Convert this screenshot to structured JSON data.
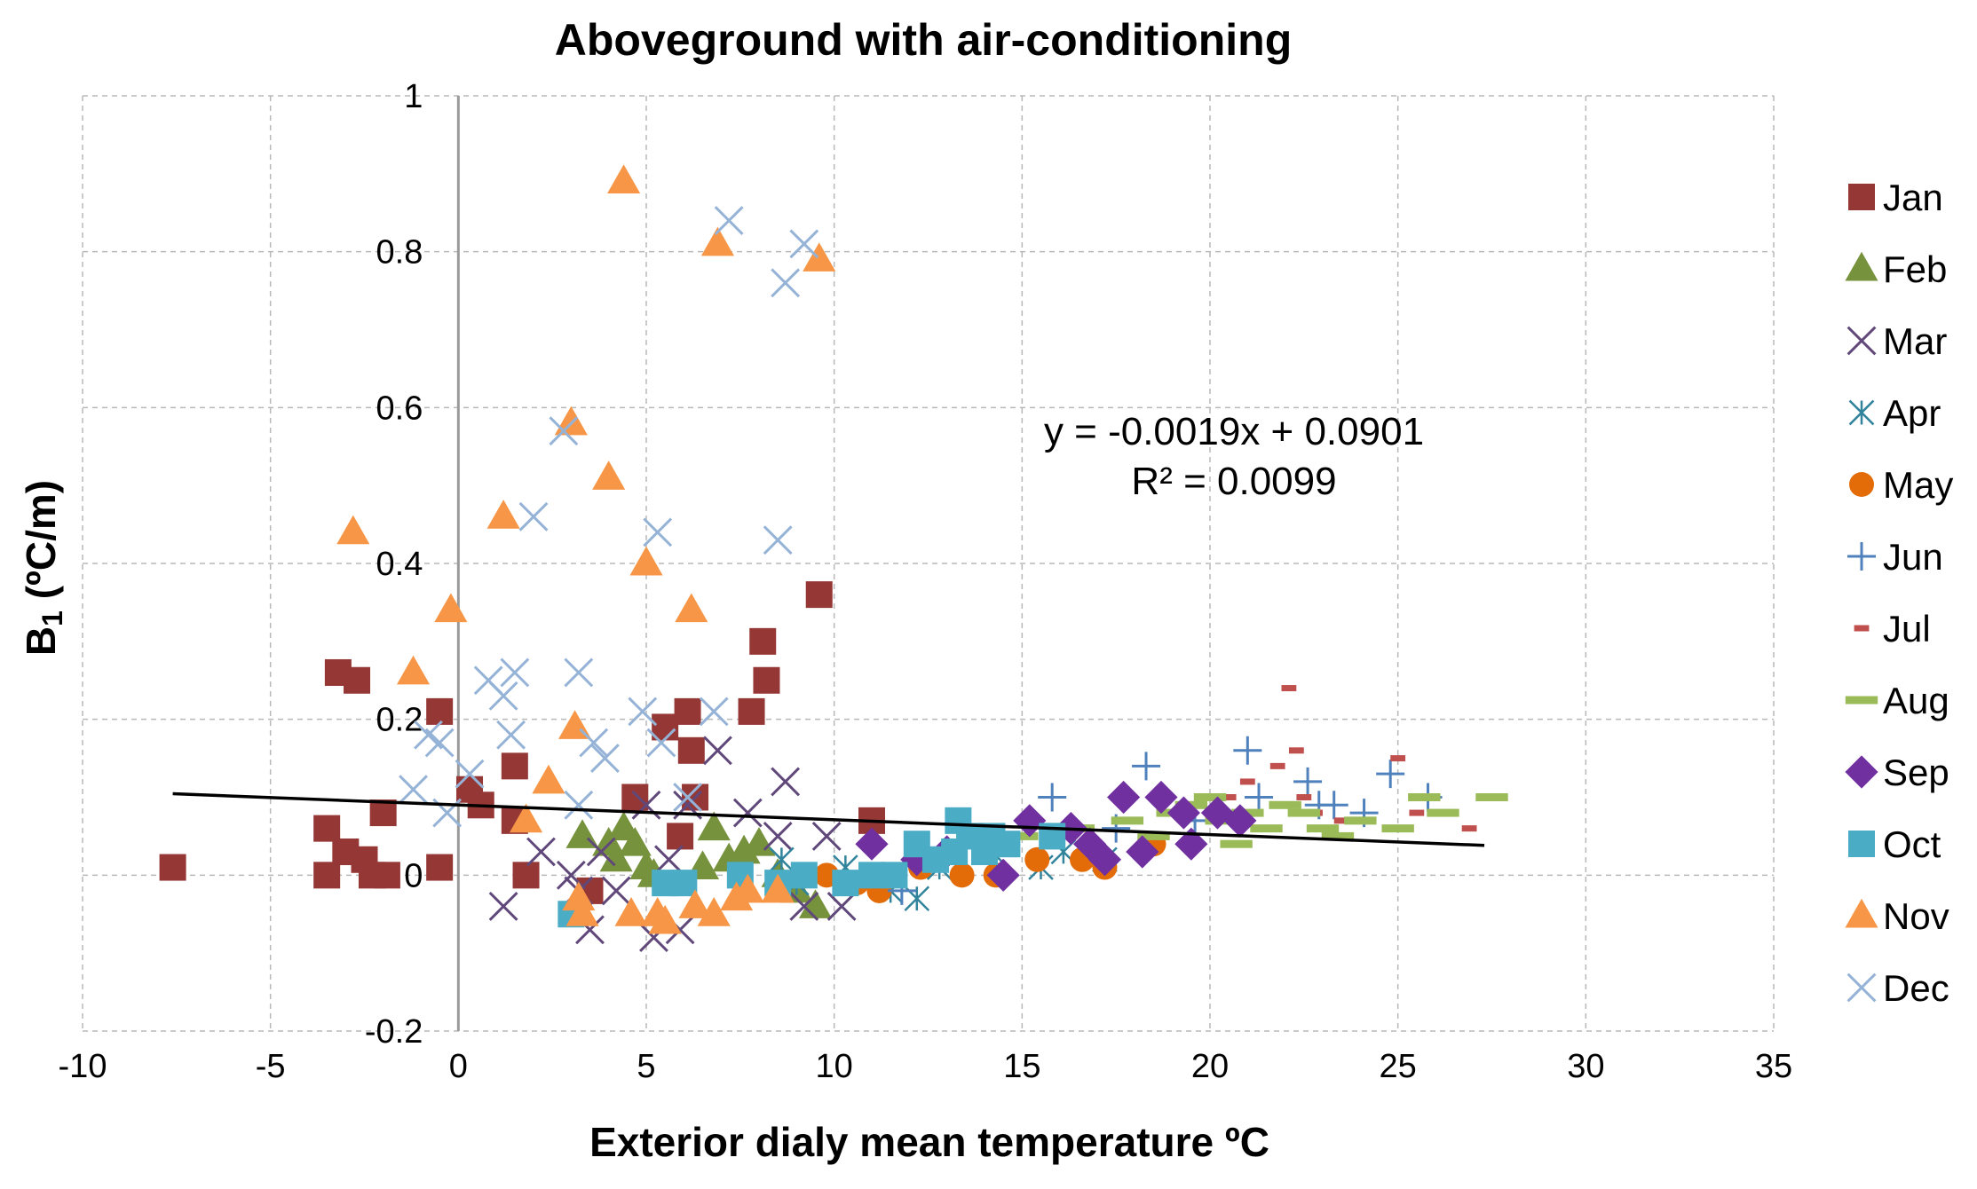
{
  "chart_data": {
    "type": "scatter",
    "title": "Aboveground with air-conditioning",
    "xlabel": "Exterior dialy mean temperature ºC",
    "ylabel_main": "B",
    "ylabel_sub": "1",
    "ylabel_rest": " (ºC/m)",
    "xlim": [
      -10,
      35
    ],
    "ylim": [
      -0.2,
      1
    ],
    "x_ticks": [
      -10,
      -5,
      0,
      5,
      10,
      15,
      20,
      25,
      30,
      35
    ],
    "y_ticks": [
      -0.2,
      0,
      0.2,
      0.4,
      0.6,
      0.8,
      1
    ],
    "y_tick_labels": [
      "-0.2",
      "0",
      "0.2",
      "0.4",
      "0.6",
      "0.8",
      "1"
    ],
    "grid": true,
    "legend_position": "right",
    "trendline": {
      "x": [
        -7.6,
        27.3
      ],
      "slope": -0.0019,
      "intercept": 0.0901,
      "equation": "y = -0.0019x + 0.0901",
      "r2": "R² = 0.0099"
    },
    "series": [
      {
        "name": "Jan",
        "marker": "square",
        "color": "#953735",
        "points": [
          [
            -7.6,
            0.01
          ],
          [
            -3.5,
            0.06
          ],
          [
            -3.5,
            0.0
          ],
          [
            -3.2,
            0.26
          ],
          [
            -3,
            0.03
          ],
          [
            -2.7,
            0.25
          ],
          [
            -2.5,
            0.02
          ],
          [
            -2.3,
            0.0
          ],
          [
            -2,
            0.08
          ],
          [
            -1.9,
            0.0
          ],
          [
            -0.5,
            0.21
          ],
          [
            -0.5,
            0.01
          ],
          [
            0.3,
            0.11
          ],
          [
            0.6,
            0.09
          ],
          [
            1.5,
            0.14
          ],
          [
            1.5,
            0.07
          ],
          [
            1.8,
            0.0
          ],
          [
            3.5,
            -0.02
          ],
          [
            4.7,
            0.1
          ],
          [
            5.5,
            0.19
          ],
          [
            5.9,
            0.05
          ],
          [
            6.1,
            0.21
          ],
          [
            6.2,
            0.16
          ],
          [
            6.3,
            0.1
          ],
          [
            7.8,
            0.21
          ],
          [
            8.1,
            0.3
          ],
          [
            8.2,
            0.25
          ],
          [
            9.6,
            0.36
          ],
          [
            11,
            0.07
          ]
        ]
      },
      {
        "name": "Feb",
        "marker": "triangle",
        "color": "#76923c",
        "points": [
          [
            3.3,
            0.05
          ],
          [
            4,
            0.04
          ],
          [
            4.2,
            0.02
          ],
          [
            4.4,
            0.06
          ],
          [
            4.7,
            0.04
          ],
          [
            5,
            0.01
          ],
          [
            5.2,
            0.0
          ],
          [
            6.5,
            0.01
          ],
          [
            6.8,
            0.06
          ],
          [
            7.2,
            0.02
          ],
          [
            7.6,
            0.03
          ],
          [
            8,
            0.04
          ],
          [
            8.5,
            0.0
          ],
          [
            9,
            -0.02
          ],
          [
            9.5,
            -0.04
          ]
        ]
      },
      {
        "name": "Mar",
        "marker": "x",
        "color": "#60497a",
        "points": [
          [
            1.2,
            -0.04
          ],
          [
            2.2,
            0.03
          ],
          [
            3,
            0.0
          ],
          [
            3.2,
            -0.02
          ],
          [
            3.5,
            -0.07
          ],
          [
            3.8,
            0.03
          ],
          [
            4.2,
            -0.02
          ],
          [
            5,
            0.09
          ],
          [
            5.2,
            -0.08
          ],
          [
            5.6,
            0.02
          ],
          [
            5.9,
            -0.07
          ],
          [
            6.1,
            0.09
          ],
          [
            6.9,
            0.16
          ],
          [
            7.7,
            0.08
          ],
          [
            8.5,
            0.05
          ],
          [
            8.7,
            0.12
          ],
          [
            9.2,
            -0.04
          ],
          [
            9.8,
            0.05
          ],
          [
            10.2,
            -0.04
          ]
        ]
      },
      {
        "name": "Apr",
        "marker": "asterisk",
        "color": "#31849b",
        "points": [
          [
            8.6,
            0.02
          ],
          [
            9,
            -0.01
          ],
          [
            10.3,
            0.01
          ],
          [
            11.5,
            -0.02
          ],
          [
            12.2,
            -0.03
          ],
          [
            12.8,
            0.01
          ],
          [
            14.2,
            0.03
          ],
          [
            15.5,
            0.01
          ],
          [
            16.1,
            0.03
          ],
          [
            17.2,
            0.02
          ]
        ]
      },
      {
        "name": "May",
        "marker": "circle",
        "color": "#e36c09",
        "points": [
          [
            9.8,
            0.0
          ],
          [
            10.6,
            -0.01
          ],
          [
            11.2,
            -0.02
          ],
          [
            12.3,
            0.01
          ],
          [
            13.4,
            0.0
          ],
          [
            14.3,
            0.0
          ],
          [
            15.4,
            0.02
          ],
          [
            16.6,
            0.02
          ],
          [
            17.2,
            0.01
          ],
          [
            18.5,
            0.04
          ]
        ]
      },
      {
        "name": "Jun",
        "marker": "plus",
        "color": "#4f81bd",
        "points": [
          [
            11.8,
            -0.02
          ],
          [
            15.8,
            0.1
          ],
          [
            17.5,
            0.06
          ],
          [
            18.3,
            0.14
          ],
          [
            19.6,
            0.07
          ],
          [
            21,
            0.16
          ],
          [
            21.3,
            0.1
          ],
          [
            22.6,
            0.12
          ],
          [
            22.9,
            0.09
          ],
          [
            23.3,
            0.09
          ],
          [
            24.1,
            0.08
          ],
          [
            24.8,
            0.13
          ],
          [
            25.8,
            0.1
          ]
        ]
      },
      {
        "name": "Jul",
        "marker": "dash-short",
        "color": "#c0504d",
        "points": [
          [
            19.5,
            0.09
          ],
          [
            20.5,
            0.1
          ],
          [
            21,
            0.12
          ],
          [
            21.5,
            0.06
          ],
          [
            21.8,
            0.14
          ],
          [
            22.1,
            0.24
          ],
          [
            22.3,
            0.16
          ],
          [
            22.5,
            0.1
          ],
          [
            22.8,
            0.08
          ],
          [
            23,
            0.06
          ],
          [
            23.5,
            0.07
          ],
          [
            25,
            0.15
          ],
          [
            25.5,
            0.08
          ],
          [
            26.9,
            0.06
          ]
        ]
      },
      {
        "name": "Aug",
        "marker": "dash-long",
        "color": "#9bbb59",
        "points": [
          [
            15,
            0.05
          ],
          [
            16.5,
            0.06
          ],
          [
            17.8,
            0.07
          ],
          [
            18.5,
            0.05
          ],
          [
            19,
            0.08
          ],
          [
            19.5,
            0.09
          ],
          [
            20,
            0.1
          ],
          [
            20.3,
            0.07
          ],
          [
            20.7,
            0.04
          ],
          [
            21,
            0.08
          ],
          [
            21.5,
            0.06
          ],
          [
            22,
            0.09
          ],
          [
            22.5,
            0.08
          ],
          [
            23,
            0.06
          ],
          [
            23.4,
            0.05
          ],
          [
            24,
            0.07
          ],
          [
            25,
            0.06
          ],
          [
            25.7,
            0.1
          ],
          [
            26.2,
            0.08
          ],
          [
            27.5,
            0.1
          ]
        ]
      },
      {
        "name": "Sep",
        "marker": "diamond",
        "color": "#7030a0",
        "points": [
          [
            11,
            0.04
          ],
          [
            12.2,
            0.02
          ],
          [
            13,
            0.03
          ],
          [
            14.5,
            0.0
          ],
          [
            15.2,
            0.07
          ],
          [
            16.3,
            0.06
          ],
          [
            16.8,
            0.04
          ],
          [
            17.2,
            0.02
          ],
          [
            17.7,
            0.1
          ],
          [
            18.2,
            0.03
          ],
          [
            18.7,
            0.1
          ],
          [
            19.3,
            0.08
          ],
          [
            19.5,
            0.04
          ],
          [
            20.2,
            0.08
          ],
          [
            20.8,
            0.07
          ]
        ]
      },
      {
        "name": "Oct",
        "marker": "square",
        "color": "#4bacc6",
        "points": [
          [
            3,
            -0.05
          ],
          [
            5.5,
            -0.01
          ],
          [
            6,
            -0.01
          ],
          [
            7.5,
            0.0
          ],
          [
            8.5,
            -0.01
          ],
          [
            9.2,
            0.0
          ],
          [
            10.3,
            -0.01
          ],
          [
            11,
            0.0
          ],
          [
            11.6,
            0.0
          ],
          [
            12.2,
            0.04
          ],
          [
            12.7,
            0.02
          ],
          [
            13.2,
            0.03
          ],
          [
            13.3,
            0.07
          ],
          [
            13.6,
            0.05
          ],
          [
            14,
            0.03
          ],
          [
            14.2,
            0.05
          ],
          [
            14.6,
            0.04
          ],
          [
            15.8,
            0.05
          ]
        ]
      },
      {
        "name": "Nov",
        "marker": "triangle",
        "color": "#f79646",
        "points": [
          [
            -2.8,
            0.44
          ],
          [
            -1.2,
            0.26
          ],
          [
            -0.2,
            0.34
          ],
          [
            1.2,
            0.46
          ],
          [
            1.8,
            0.07
          ],
          [
            2.4,
            0.12
          ],
          [
            3,
            0.58
          ],
          [
            3.1,
            0.19
          ],
          [
            3.2,
            -0.03
          ],
          [
            3.3,
            -0.05
          ],
          [
            4,
            0.51
          ],
          [
            4.4,
            0.89
          ],
          [
            4.6,
            -0.05
          ],
          [
            5,
            0.4
          ],
          [
            5.3,
            -0.05
          ],
          [
            5.5,
            -0.06
          ],
          [
            6.2,
            0.34
          ],
          [
            6.3,
            -0.04
          ],
          [
            6.8,
            -0.05
          ],
          [
            6.9,
            0.81
          ],
          [
            7.4,
            -0.03
          ],
          [
            7.7,
            -0.02
          ],
          [
            8.5,
            -0.02
          ],
          [
            9.6,
            0.79
          ]
        ]
      },
      {
        "name": "Dec",
        "marker": "x",
        "color": "#95b3d7",
        "points": [
          [
            -1.2,
            0.11
          ],
          [
            -0.8,
            0.18
          ],
          [
            -0.5,
            0.17
          ],
          [
            -0.3,
            0.08
          ],
          [
            0.3,
            0.13
          ],
          [
            0.8,
            0.25
          ],
          [
            1.2,
            0.23
          ],
          [
            1.4,
            0.18
          ],
          [
            1.5,
            0.26
          ],
          [
            2,
            0.46
          ],
          [
            2.8,
            0.57
          ],
          [
            3.2,
            0.26
          ],
          [
            3.2,
            0.09
          ],
          [
            3.6,
            0.17
          ],
          [
            3.9,
            0.15
          ],
          [
            4.9,
            0.21
          ],
          [
            5.3,
            0.44
          ],
          [
            5.4,
            0.17
          ],
          [
            6.1,
            0.1
          ],
          [
            6.8,
            0.21
          ],
          [
            7.2,
            0.84
          ],
          [
            8.5,
            0.43
          ],
          [
            8.7,
            0.76
          ],
          [
            9.2,
            0.81
          ]
        ]
      }
    ]
  }
}
